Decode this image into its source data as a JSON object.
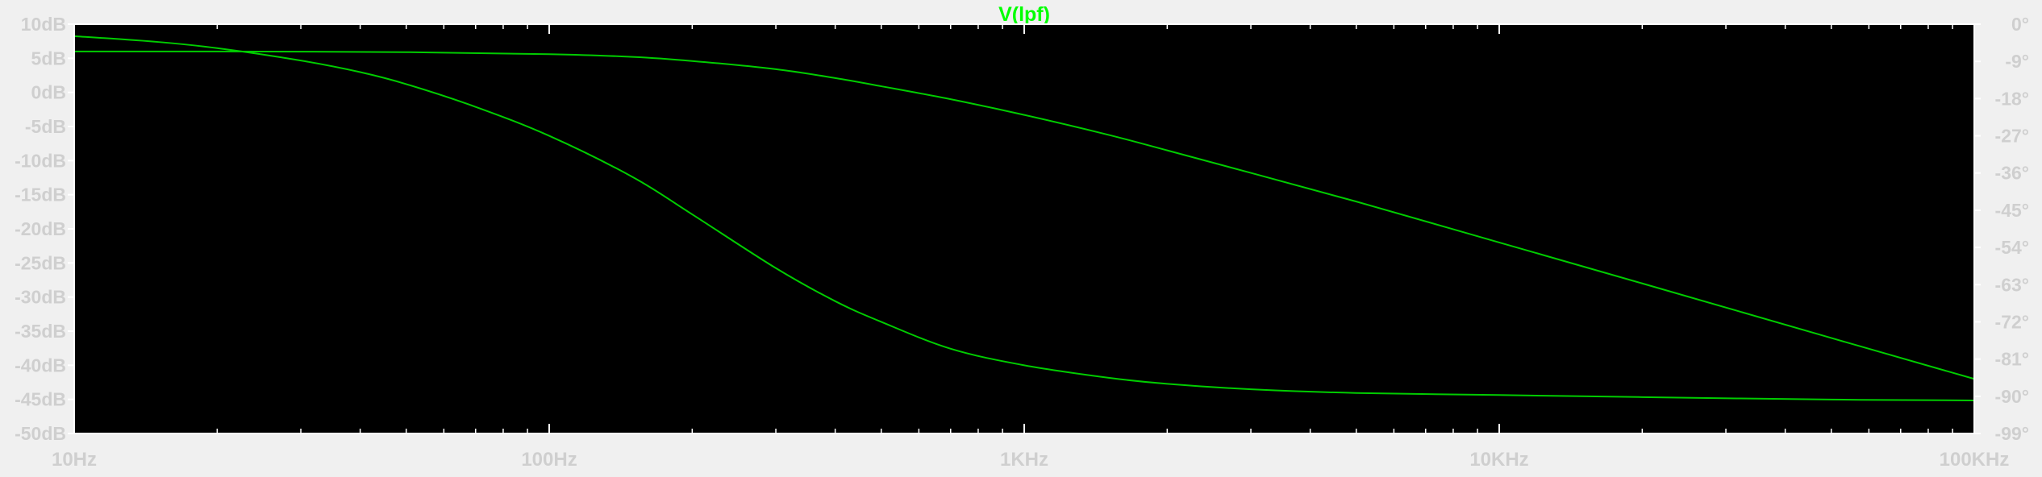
{
  "window": {
    "background": "#000000",
    "frame_color": "#f0f0f0"
  },
  "chart_data": {
    "type": "line",
    "title": "V(lpf)",
    "title_color": "#00ff00",
    "x_scale": "log",
    "x_range_hz": [
      10,
      100000
    ],
    "x_ticks": [
      {
        "value": 10,
        "label": "10Hz"
      },
      {
        "value": 100,
        "label": "100Hz"
      },
      {
        "value": 1000,
        "label": "1KHz"
      },
      {
        "value": 10000,
        "label": "10KHz"
      },
      {
        "value": 100000,
        "label": "100KHz"
      }
    ],
    "y_left_range_db": [
      -50,
      10
    ],
    "y_left_ticks": [
      {
        "value": 10,
        "label": "10dB"
      },
      {
        "value": 5,
        "label": "5dB"
      },
      {
        "value": 0,
        "label": "0dB"
      },
      {
        "value": -5,
        "label": "-5dB"
      },
      {
        "value": -10,
        "label": "-10dB"
      },
      {
        "value": -15,
        "label": "-15dB"
      },
      {
        "value": -20,
        "label": "-20dB"
      },
      {
        "value": -25,
        "label": "-25dB"
      },
      {
        "value": -30,
        "label": "-30dB"
      },
      {
        "value": -35,
        "label": "-35dB"
      },
      {
        "value": -40,
        "label": "-40dB"
      },
      {
        "value": -45,
        "label": "-45dB"
      },
      {
        "value": -50,
        "label": "-50dB"
      }
    ],
    "y_right_range_deg": [
      -99,
      0
    ],
    "y_right_ticks": [
      {
        "value": 0,
        "label": "0°"
      },
      {
        "value": -9,
        "label": "-9°"
      },
      {
        "value": -18,
        "label": "-18°"
      },
      {
        "value": -27,
        "label": "-27°"
      },
      {
        "value": -36,
        "label": "-36°"
      },
      {
        "value": -45,
        "label": "-45°"
      },
      {
        "value": -54,
        "label": "-54°"
      },
      {
        "value": -63,
        "label": "-63°"
      },
      {
        "value": -72,
        "label": "-72°"
      },
      {
        "value": -81,
        "label": "-81°"
      },
      {
        "value": -90,
        "label": "-90°"
      },
      {
        "value": -99,
        "label": "-99°"
      }
    ],
    "grid": false,
    "series": [
      {
        "axis": "left",
        "color": "#00cc00",
        "points": [
          [
            10,
            6.0
          ],
          [
            20,
            6.0
          ],
          [
            50,
            5.9
          ],
          [
            100,
            5.6
          ],
          [
            150,
            5.2
          ],
          [
            200,
            4.6
          ],
          [
            300,
            3.4
          ],
          [
            400,
            2.1
          ],
          [
            500,
            0.9
          ],
          [
            700,
            -1.0
          ],
          [
            1000,
            -3.3
          ],
          [
            1500,
            -6.2
          ],
          [
            2000,
            -8.5
          ],
          [
            3000,
            -11.8
          ],
          [
            5000,
            -16.0
          ],
          [
            10000,
            -22.0
          ],
          [
            20000,
            -28.0
          ],
          [
            50000,
            -36.0
          ],
          [
            100000,
            -42.0
          ]
        ]
      },
      {
        "axis": "right",
        "color": "#00cc00",
        "points": [
          [
            10,
            -2.9
          ],
          [
            15,
            -4.3
          ],
          [
            20,
            -5.8
          ],
          [
            30,
            -8.8
          ],
          [
            40,
            -11.6
          ],
          [
            50,
            -14.5
          ],
          [
            70,
            -20.0
          ],
          [
            100,
            -27.0
          ],
          [
            150,
            -37.0
          ],
          [
            200,
            -46.0
          ],
          [
            300,
            -59.0
          ],
          [
            400,
            -67.0
          ],
          [
            500,
            -72.0
          ],
          [
            700,
            -78.5
          ],
          [
            1000,
            -82.5
          ],
          [
            1500,
            -85.5
          ],
          [
            2000,
            -87.0
          ],
          [
            3000,
            -88.3
          ],
          [
            5000,
            -89.2
          ],
          [
            10000,
            -89.7
          ],
          [
            20000,
            -90.2
          ],
          [
            50000,
            -90.8
          ],
          [
            100000,
            -91.0
          ]
        ]
      }
    ]
  }
}
